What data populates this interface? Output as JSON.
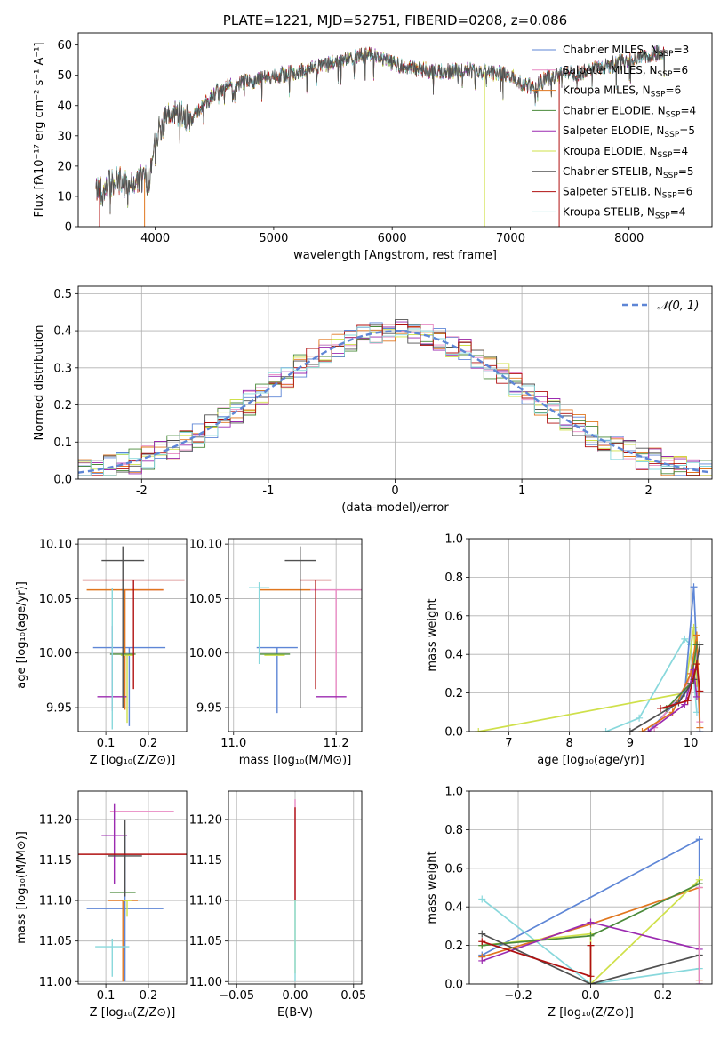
{
  "colors": {
    "chabrier_miles": "#5e86d6",
    "salpeter_miles": "#e889c3",
    "kroupa_miles": "#e0761e",
    "chabrier_elodie": "#4a8a3a",
    "salpeter_elodie": "#9b2ab0",
    "kroupa_elodie": "#cfe04a",
    "chabrier_stelib": "#505050",
    "salpeter_stelib": "#b01010",
    "kroupa_stelib": "#88d8dc"
  },
  "chart_data": [
    {
      "id": "spectrum",
      "type": "line",
      "title": "PLATE=1221, MJD=52751, FIBERID=0208, z=0.086",
      "xlabel": "wavelength [Angstrom, rest frame]",
      "ylabel": "Flux [fλ10⁻¹⁷ erg cm⁻² s⁻¹ A⁻¹]",
      "xlim": [
        3350,
        8700
      ],
      "ylim": [
        0,
        64
      ],
      "xticks": [
        4000,
        5000,
        6000,
        7000,
        8000
      ],
      "yticks": [
        0,
        10,
        20,
        30,
        40,
        50,
        60
      ],
      "grid": false,
      "legend_position": "upper-right",
      "continuum": {
        "x": [
          3500,
          3600,
          3700,
          3800,
          3900,
          3950,
          4000,
          4100,
          4200,
          4300,
          4400,
          4500,
          4600,
          4700,
          4800,
          4900,
          5000,
          5200,
          5400,
          5600,
          5800,
          5900,
          6000,
          6200,
          6400,
          6600,
          6800,
          7000,
          7100,
          7200,
          7300,
          7400,
          7600,
          7800,
          8000,
          8200,
          8300
        ],
        "y": [
          12,
          14,
          15,
          14,
          16,
          15,
          30,
          36,
          38,
          35,
          40,
          44,
          46,
          47,
          48,
          49,
          50,
          51,
          53,
          55,
          57,
          56,
          54,
          52,
          51,
          52,
          51,
          50,
          47,
          46,
          49,
          50,
          51,
          53,
          55,
          57,
          57
        ]
      },
      "dropouts": [
        {
          "x": 3530,
          "series": "salpeter_stelib"
        },
        {
          "x": 3910,
          "series": "kroupa_miles"
        },
        {
          "x": 6780,
          "series": "kroupa_elodie"
        },
        {
          "x": 7410,
          "series": "salpeter_stelib"
        }
      ],
      "legend": [
        {
          "label": "Chabrier MILES, N",
          "sub": "SSP",
          "suffix": "=3",
          "color_key": "chabrier_miles"
        },
        {
          "label": "Salpeter MILES, N",
          "sub": "SSP",
          "suffix": "=6",
          "color_key": "salpeter_miles"
        },
        {
          "label": "Kroupa MILES, N",
          "sub": "SSP",
          "suffix": "=6",
          "color_key": "kroupa_miles"
        },
        {
          "label": "Chabrier ELODIE, N",
          "sub": "SSP",
          "suffix": "=4",
          "color_key": "chabrier_elodie"
        },
        {
          "label": "Salpeter ELODIE, N",
          "sub": "SSP",
          "suffix": "=5",
          "color_key": "salpeter_elodie"
        },
        {
          "label": "Kroupa ELODIE, N",
          "sub": "SSP",
          "suffix": "=4",
          "color_key": "kroupa_elodie"
        },
        {
          "label": "Chabrier STELIB, N",
          "sub": "SSP",
          "suffix": "=5",
          "color_key": "chabrier_stelib"
        },
        {
          "label": "Salpeter STELIB, N",
          "sub": "SSP",
          "suffix": "=6",
          "color_key": "salpeter_stelib"
        },
        {
          "label": "Kroupa STELIB, N",
          "sub": "SSP",
          "suffix": "=4",
          "color_key": "kroupa_stelib"
        }
      ]
    },
    {
      "id": "residuals",
      "type": "line",
      "xlabel": "(data-model)/error",
      "ylabel": "Normed distribution",
      "xlim": [
        -2.5,
        2.5
      ],
      "ylim": [
        0,
        0.52
      ],
      "xticks": [
        -2,
        -1,
        0,
        1,
        2
      ],
      "yticks": [
        0.0,
        0.1,
        0.2,
        0.3,
        0.4,
        0.5
      ],
      "ytick_labels": [
        "0.0",
        "0.1",
        "0.2",
        "0.3",
        "0.4",
        "0.5"
      ],
      "grid": true,
      "legend_position": "upper-right",
      "bin_width": 0.1,
      "legend": [
        {
          "label": "𝒩(0, 1)",
          "color": "#5e86d6",
          "style": "dashed"
        }
      ]
    },
    {
      "id": "age_vs_z",
      "type": "scatter",
      "xlabel": "Z [log₁₀(Z/Z⊙)]",
      "ylabel": "age  [log₁₀(age/yr)]",
      "xlim": [
        0.035,
        0.29
      ],
      "ylim": [
        9.928,
        10.105
      ],
      "xticks": [
        0.1,
        0.2
      ],
      "xtick_labels": [
        "0.1",
        "0.2"
      ],
      "yticks": [
        9.95,
        10.0,
        10.05,
        10.1
      ],
      "ytick_labels": [
        "9.95",
        "10.00",
        "10.05",
        "10.10"
      ],
      "grid": true,
      "points": [
        {
          "series": "chabrier_miles",
          "x": 0.155,
          "xerr": 0.085,
          "y": 10.005,
          "yerr_low": 0.072,
          "yerr_high": 0.0
        },
        {
          "series": "salpeter_miles",
          "x": 0.185,
          "xerr": 0.05,
          "y": 10.058,
          "yerr_low": 0.0,
          "yerr_high": 0.0
        },
        {
          "series": "kroupa_miles",
          "x": 0.145,
          "xerr": 0.09,
          "y": 10.058,
          "yerr_low": 0.11,
          "yerr_high": 0.0
        },
        {
          "series": "chabrier_elodie",
          "x": 0.14,
          "xerr": 0.03,
          "y": 9.999,
          "yerr_low": 0.003,
          "yerr_high": 0.003
        },
        {
          "series": "salpeter_elodie",
          "x": 0.115,
          "xerr": 0.035,
          "y": 9.96,
          "yerr_low": 0.013,
          "yerr_high": 0.065
        },
        {
          "series": "kroupa_elodie",
          "x": 0.15,
          "xerr": 0.015,
          "y": 9.998,
          "yerr_low": 0.062,
          "yerr_high": 0.0
        },
        {
          "series": "chabrier_stelib",
          "x": 0.14,
          "xerr": 0.05,
          "y": 10.085,
          "yerr_low": 0.135,
          "yerr_high": 0.013
        },
        {
          "series": "salpeter_stelib",
          "x": 0.165,
          "xerr": 0.12,
          "y": 10.067,
          "yerr_low": 0.1,
          "yerr_high": 0.0
        },
        {
          "series": "kroupa_stelib",
          "x": 0.115,
          "xerr": 0.0,
          "y": 10.0,
          "yerr_low": 0.07,
          "yerr_high": 0.06
        }
      ]
    },
    {
      "id": "age_vs_mass",
      "type": "scatter",
      "xlabel": "mass [log₁₀(M/M⊙)]",
      "xlim": [
        10.99,
        11.25
      ],
      "ylim": [
        9.928,
        10.105
      ],
      "xticks": [
        11.0,
        11.2
      ],
      "xtick_labels": [
        "11.0",
        "11.2"
      ],
      "yticks": [
        9.95,
        10.0,
        10.05,
        10.1
      ],
      "ytick_labels": [
        "9.95",
        "10.00",
        "10.05",
        "10.10"
      ],
      "grid": true,
      "points": [
        {
          "series": "chabrier_miles",
          "x": 11.085,
          "xerr": 0.04,
          "y": 10.005,
          "yerr_low": 0.06,
          "yerr_high": 0.0
        },
        {
          "series": "salpeter_miles",
          "x": 11.2,
          "xerr": 0.05,
          "y": 10.058,
          "yerr_low": 0.1,
          "yerr_high": 0.0
        },
        {
          "series": "kroupa_miles",
          "x": 11.1,
          "xerr": 0.05,
          "y": 10.058,
          "yerr_low": 0.0,
          "yerr_high": 0.0
        },
        {
          "series": "chabrier_elodie",
          "x": 11.08,
          "xerr": 0.03,
          "y": 9.999,
          "yerr_low": 0.0,
          "yerr_high": 0.0
        },
        {
          "series": "salpeter_elodie",
          "x": 11.19,
          "xerr": 0.03,
          "y": 9.96,
          "yerr_low": 0.0,
          "yerr_high": 0.0
        },
        {
          "series": "kroupa_elodie",
          "x": 11.08,
          "xerr": 0.02,
          "y": 9.998,
          "yerr_low": 0.0,
          "yerr_high": 0.0
        },
        {
          "series": "chabrier_stelib",
          "x": 11.13,
          "xerr": 0.03,
          "y": 10.085,
          "yerr_low": 0.135,
          "yerr_high": 0.013
        },
        {
          "series": "salpeter_stelib",
          "x": 11.16,
          "xerr": 0.03,
          "y": 10.067,
          "yerr_low": 0.1,
          "yerr_high": 0.0
        },
        {
          "series": "kroupa_stelib",
          "x": 11.05,
          "xerr": 0.02,
          "y": 10.06,
          "yerr_low": 0.07,
          "yerr_high": 0.005
        }
      ]
    },
    {
      "id": "weight_vs_age",
      "type": "line",
      "xlabel": "age  [log₁₀(age/yr)]",
      "ylabel": "mass weight",
      "xlim": [
        6.35,
        10.35
      ],
      "ylim": [
        0,
        1.0
      ],
      "xticks": [
        7,
        8,
        9,
        10
      ],
      "yticks": [
        0.0,
        0.2,
        0.4,
        0.6,
        0.8,
        1.0
      ],
      "ytick_labels": [
        "0.0",
        "0.2",
        "0.4",
        "0.6",
        "0.8",
        "1.0"
      ],
      "grid": true,
      "series": [
        {
          "series": "kroupa_stelib",
          "x": [
            8.6,
            9.15,
            9.9,
            10.0,
            10.1
          ],
          "y": [
            0.0,
            0.07,
            0.48,
            0.45,
            0.1
          ]
        },
        {
          "series": "kroupa_elodie",
          "x": [
            6.5,
            9.9,
            10.05,
            10.1
          ],
          "y": [
            0.0,
            0.2,
            0.54,
            0.25
          ]
        },
        {
          "series": "chabrier_miles",
          "x": [
            9.3,
            9.9,
            10.05,
            10.1,
            10.15
          ],
          "y": [
            0.0,
            0.2,
            0.75,
            0.4,
            0.0
          ]
        },
        {
          "series": "salpeter_miles",
          "x": [
            9.4,
            9.95,
            10.1,
            10.15
          ],
          "y": [
            0.02,
            0.25,
            0.45,
            0.05
          ]
        },
        {
          "series": "kroupa_miles",
          "x": [
            9.2,
            9.7,
            10.0,
            10.1,
            10.15
          ],
          "y": [
            0.0,
            0.1,
            0.3,
            0.5,
            0.02
          ]
        },
        {
          "series": "chabrier_elodie",
          "x": [
            9.6,
            10.0,
            10.1
          ],
          "y": [
            0.12,
            0.25,
            0.45
          ]
        },
        {
          "series": "salpeter_elodie",
          "x": [
            9.3,
            9.9,
            10.05,
            10.1
          ],
          "y": [
            0.0,
            0.14,
            0.32,
            0.18
          ]
        },
        {
          "series": "chabrier_stelib",
          "x": [
            9.0,
            9.8,
            10.05,
            10.15
          ],
          "y": [
            0.0,
            0.15,
            0.27,
            0.45
          ]
        },
        {
          "series": "salpeter_stelib",
          "x": [
            9.5,
            9.95,
            10.1,
            10.15
          ],
          "y": [
            0.12,
            0.16,
            0.35,
            0.21
          ]
        }
      ]
    },
    {
      "id": "mass_vs_z",
      "type": "scatter",
      "xlabel": "Z [log₁₀(Z/Z⊙)]",
      "ylabel": "mass [log₁₀(M/M⊙)]",
      "xlim": [
        0.035,
        0.29
      ],
      "ylim": [
        10.997,
        11.235
      ],
      "xticks": [
        0.1,
        0.2
      ],
      "xtick_labels": [
        "0.1",
        "0.2"
      ],
      "yticks": [
        11.0,
        11.05,
        11.1,
        11.15,
        11.2
      ],
      "ytick_labels": [
        "11.00",
        "11.05",
        "11.10",
        "11.15",
        "11.20"
      ],
      "grid": true,
      "points": [
        {
          "series": "chabrier_miles",
          "x": 0.145,
          "xerr": 0.09,
          "y": 11.09,
          "yerr_low": 0.09,
          "yerr_high": 0.09
        },
        {
          "series": "salpeter_miles",
          "x": 0.185,
          "xerr": 0.075,
          "y": 11.21,
          "yerr_low": 0.0,
          "yerr_high": 0.0
        },
        {
          "series": "kroupa_miles",
          "x": 0.14,
          "xerr": 0.035,
          "y": 11.1,
          "yerr_low": 0.1,
          "yerr_high": 0.0
        },
        {
          "series": "chabrier_elodie",
          "x": 0.14,
          "xerr": 0.03,
          "y": 11.11,
          "yerr_low": 0.0,
          "yerr_high": 0.0
        },
        {
          "series": "salpeter_elodie",
          "x": 0.12,
          "xerr": 0.03,
          "y": 11.18,
          "yerr_low": 0.06,
          "yerr_high": 0.04
        },
        {
          "series": "kroupa_elodie",
          "x": 0.15,
          "xerr": 0.01,
          "y": 11.1,
          "yerr_low": 0.02,
          "yerr_high": 0.0
        },
        {
          "series": "chabrier_stelib",
          "x": 0.145,
          "xerr": 0.04,
          "y": 11.155,
          "yerr_low": 0.05,
          "yerr_high": 0.045
        },
        {
          "series": "salpeter_stelib",
          "x": 0.16,
          "xerr": 0.13,
          "y": 11.157,
          "yerr_low": 0.0,
          "yerr_high": 0.0
        },
        {
          "series": "kroupa_stelib",
          "x": 0.115,
          "xerr": 0.04,
          "y": 11.043,
          "yerr_low": 0.037,
          "yerr_high": 0.01
        }
      ]
    },
    {
      "id": "mass_vs_ebv",
      "type": "scatter",
      "xlabel": "E(B-V)",
      "xlim": [
        -0.057,
        0.057
      ],
      "ylim": [
        10.997,
        11.235
      ],
      "xticks": [
        -0.05,
        0.0,
        0.05
      ],
      "xtick_labels": [
        "−0.05",
        "0.00",
        "0.05"
      ],
      "yticks": [
        11.0,
        11.05,
        11.1,
        11.15,
        11.2
      ],
      "ytick_labels": [
        "11.00",
        "11.05",
        "11.10",
        "11.15",
        "11.20"
      ],
      "grid": true,
      "segments": [
        {
          "series": "salpeter_miles",
          "x": 0.0,
          "y_low": 11.1,
          "y_high": 11.225
        },
        {
          "series": "kroupa_elodie",
          "x": 0.0,
          "y_low": 11.01,
          "y_high": 11.1
        },
        {
          "series": "salpeter_stelib",
          "x": 0.0,
          "y_low": 11.1,
          "y_high": 11.215
        },
        {
          "series": "kroupa_stelib",
          "x": 0.0,
          "y_low": 11.0,
          "y_high": 11.1
        }
      ]
    },
    {
      "id": "weight_vs_z",
      "type": "line",
      "xlabel": "Z [log₁₀(Z/Z⊙)]",
      "ylabel": "mass weight",
      "xlim": [
        -0.335,
        0.335
      ],
      "ylim": [
        0,
        1.0
      ],
      "xticks": [
        -0.2,
        0.0,
        0.2
      ],
      "xtick_labels": [
        "−0.2",
        "0.0",
        "0.2"
      ],
      "yticks": [
        0.0,
        0.2,
        0.4,
        0.6,
        0.8,
        1.0
      ],
      "ytick_labels": [
        "0.0",
        "0.2",
        "0.4",
        "0.6",
        "0.8",
        "1.0"
      ],
      "grid": true,
      "series": [
        {
          "series": "kroupa_stelib",
          "x": [
            -0.3,
            0.0,
            0.3
          ],
          "y": [
            0.44,
            0.0,
            0.08
          ]
        },
        {
          "series": "chabrier_miles",
          "x": [
            -0.3,
            0.3,
            0.3
          ],
          "y": [
            0.15,
            0.75,
            0.0
          ]
        },
        {
          "series": "kroupa_miles",
          "x": [
            -0.3,
            0.0,
            0.3,
            0.3
          ],
          "y": [
            0.14,
            0.31,
            0.5,
            0.02
          ]
        },
        {
          "series": "kroupa_elodie",
          "x": [
            -0.3,
            0.0,
            0.0,
            0.3
          ],
          "y": [
            0.2,
            0.26,
            0.0,
            0.54
          ]
        },
        {
          "series": "chabrier_elodie",
          "x": [
            -0.3,
            0.0,
            0.3
          ],
          "y": [
            0.2,
            0.25,
            0.52
          ]
        },
        {
          "series": "salpeter_elodie",
          "x": [
            -0.3,
            0.0,
            0.3
          ],
          "y": [
            0.12,
            0.32,
            0.18
          ]
        },
        {
          "series": "chabrier_stelib",
          "x": [
            -0.3,
            0.0,
            0.3
          ],
          "y": [
            0.26,
            0.0,
            0.15
          ]
        },
        {
          "series": "salpeter_stelib",
          "x": [
            -0.3,
            0.0,
            0.0
          ],
          "y": [
            0.22,
            0.04,
            0.2
          ]
        },
        {
          "series": "salpeter_miles",
          "x": [
            0.3,
            0.3
          ],
          "y": [
            0.0,
            0.5
          ]
        }
      ]
    }
  ]
}
